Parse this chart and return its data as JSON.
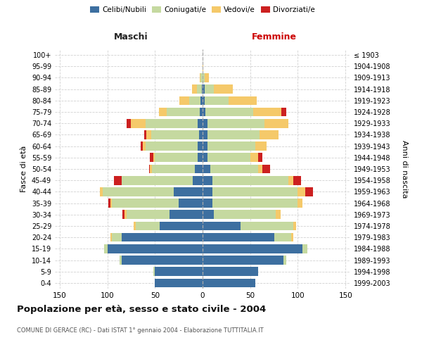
{
  "age_groups": [
    "0-4",
    "5-9",
    "10-14",
    "15-19",
    "20-24",
    "25-29",
    "30-34",
    "35-39",
    "40-44",
    "45-49",
    "50-54",
    "55-59",
    "60-64",
    "65-69",
    "70-74",
    "75-79",
    "80-84",
    "85-89",
    "90-94",
    "95-99",
    "100+"
  ],
  "birth_years": [
    "1999-2003",
    "1994-1998",
    "1989-1993",
    "1984-1988",
    "1979-1983",
    "1974-1978",
    "1969-1973",
    "1964-1968",
    "1959-1963",
    "1954-1958",
    "1949-1953",
    "1944-1948",
    "1939-1943",
    "1934-1938",
    "1929-1933",
    "1924-1928",
    "1919-1923",
    "1914-1918",
    "1909-1913",
    "1904-1908",
    "≤ 1903"
  ],
  "maschi": {
    "celibi": [
      50,
      50,
      85,
      100,
      85,
      45,
      35,
      25,
      30,
      10,
      8,
      5,
      5,
      4,
      5,
      3,
      2,
      1,
      0,
      0,
      0
    ],
    "coniugati": [
      0,
      2,
      2,
      3,
      10,
      25,
      45,
      70,
      75,
      75,
      45,
      45,
      55,
      50,
      55,
      35,
      12,
      5,
      2,
      0,
      0
    ],
    "vedovi": [
      0,
      0,
      0,
      0,
      2,
      2,
      2,
      2,
      3,
      0,
      2,
      2,
      3,
      5,
      15,
      8,
      10,
      5,
      1,
      0,
      0
    ],
    "divorziati": [
      0,
      0,
      0,
      0,
      0,
      0,
      2,
      2,
      0,
      8,
      1,
      3,
      2,
      2,
      5,
      0,
      0,
      0,
      0,
      0,
      0
    ]
  },
  "femmine": {
    "nubili": [
      55,
      58,
      85,
      105,
      75,
      40,
      12,
      10,
      10,
      10,
      8,
      5,
      5,
      5,
      5,
      3,
      2,
      2,
      0,
      0,
      0
    ],
    "coniugate": [
      0,
      0,
      3,
      5,
      18,
      55,
      65,
      90,
      90,
      80,
      50,
      45,
      50,
      55,
      60,
      50,
      25,
      10,
      2,
      0,
      0
    ],
    "vedove": [
      0,
      0,
      0,
      0,
      2,
      3,
      5,
      5,
      8,
      5,
      5,
      8,
      12,
      20,
      25,
      30,
      30,
      20,
      5,
      1,
      0
    ],
    "divorziate": [
      0,
      0,
      0,
      0,
      0,
      0,
      0,
      0,
      8,
      8,
      8,
      5,
      0,
      0,
      0,
      5,
      0,
      0,
      0,
      0,
      0
    ]
  },
  "colors": {
    "celibi": "#3d6fa0",
    "coniugati": "#c5d9a0",
    "vedovi": "#f5c96a",
    "divorziati": "#cc2020"
  },
  "xlim": 155,
  "title": "Popolazione per età, sesso e stato civile - 2004",
  "subtitle": "COMUNE DI GERACE (RC) - Dati ISTAT 1° gennaio 2004 - Elaborazione TUTTITALIA.IT",
  "ylabel": "Fasce di età",
  "ylabel_right": "Anni di nascita",
  "maschi_label": "Maschi",
  "femmine_label": "Femmine",
  "legend_labels": [
    "Celibi/Nubili",
    "Coniugati/e",
    "Vedovi/e",
    "Divorziati/e"
  ],
  "bg_color": "#ffffff",
  "grid_color": "#cccccc"
}
